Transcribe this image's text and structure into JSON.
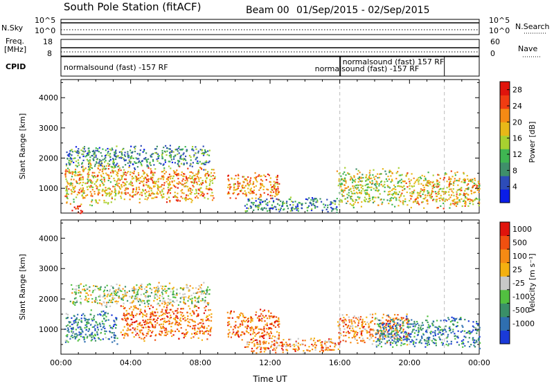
{
  "header": {
    "station": "South Pole Station (fitACF)",
    "beam": "Beam 00",
    "date_range": "01/Sep/2015 - 02/Sep/2015"
  },
  "top_panels": {
    "nsky_label": "N.Sky",
    "nsky_ticks": [
      "10^5",
      "10^0"
    ],
    "nsearch_label": "N.Search",
    "nsearch_ticks": [
      "10^5",
      "10^0"
    ],
    "freq_label_1": "Freq.",
    "freq_label_2": "[MHz]",
    "freq_ticks": [
      "18",
      "8"
    ],
    "nave_label": "Nave",
    "nave_ticks": [
      "60",
      "0"
    ],
    "cpid_label": "CPID",
    "cpid_segments": [
      {
        "start_hour": 0,
        "text": "normalsound (fast) -157 RF"
      },
      {
        "start_hour": 16,
        "text": "normalsound (fast) -157 RF"
      },
      {
        "start_hour": 16,
        "text": "normalsound (fast) 157 RF"
      },
      {
        "start_hour": 22,
        "text": ""
      }
    ]
  },
  "chart_data": [
    {
      "type": "heatmap",
      "name": "power",
      "xlabel": "",
      "ylabel": "Slant Range [km]",
      "ylim": [
        180,
        4600
      ],
      "xlim_hours": [
        0,
        24
      ],
      "yticks": [
        "1000",
        "2000",
        "3000",
        "4000"
      ],
      "colorbar_label": "Power [dB]",
      "colorbar_ticks": [
        "4",
        "8",
        "12",
        "16",
        "20",
        "24",
        "28"
      ],
      "colorbar_range": [
        0,
        30
      ],
      "colors": [
        "#0a1de8",
        "#2d4cb8",
        "#3f8f6a",
        "#3fb552",
        "#a8d030",
        "#e8b818",
        "#f58a14",
        "#f03c12",
        "#e0140c"
      ],
      "scatter_regions": [
        {
          "x_hours": [
            0.2,
            3.4
          ],
          "y_km": [
            550,
            1800
          ],
          "level": 0.62
        },
        {
          "x_hours": [
            3.4,
            8.8
          ],
          "y_km": [
            600,
            1700
          ],
          "level": 0.68
        },
        {
          "x_hours": [
            9.5,
            12.5
          ],
          "y_km": [
            700,
            1500
          ],
          "level": 0.72
        },
        {
          "x_hours": [
            10.5,
            15.8
          ],
          "y_km": [
            250,
            700
          ],
          "level": 0.28
        },
        {
          "x_hours": [
            15.8,
            19.5
          ],
          "y_km": [
            450,
            1600
          ],
          "level": 0.52
        },
        {
          "x_hours": [
            19.5,
            24
          ],
          "y_km": [
            400,
            1500
          ],
          "level": 0.62
        },
        {
          "x_hours": [
            0.2,
            8.5
          ],
          "y_km": [
            1700,
            2400
          ],
          "level": 0.3
        },
        {
          "x_hours": [
            0.5,
            1.2
          ],
          "y_km": [
            200,
            450
          ],
          "level": 0.85
        }
      ]
    },
    {
      "type": "heatmap",
      "name": "velocity",
      "xlabel": "Time UT",
      "ylabel": "Slant Range [km]",
      "ylim": [
        180,
        4600
      ],
      "xlim_hours": [
        0,
        24
      ],
      "yticks": [
        "1000",
        "2000",
        "3000",
        "4000"
      ],
      "xticks": [
        "00:00",
        "04:00",
        "08:00",
        "12:00",
        "16:00",
        "20:00",
        "00:00"
      ],
      "colorbar_label": "Velocity [m s⁻¹]",
      "colorbar_ticks": [
        "1000",
        "500",
        "100",
        "25",
        "-25",
        "-100",
        "-500",
        "-1000"
      ],
      "colors": [
        "#1a3ad8",
        "#2f6fb0",
        "#3a8f68",
        "#52c040",
        "#c8c8c8",
        "#f4b010",
        "#f58a14",
        "#f05010",
        "#e0140c"
      ],
      "scatter_regions": [
        {
          "x_hours": [
            0.2,
            3.2
          ],
          "y_km": [
            600,
            1600
          ],
          "level": 0.25
        },
        {
          "x_hours": [
            3.4,
            8.6
          ],
          "y_km": [
            700,
            1800
          ],
          "level": 0.78
        },
        {
          "x_hours": [
            9.5,
            12.5
          ],
          "y_km": [
            700,
            1600
          ],
          "level": 0.78
        },
        {
          "x_hours": [
            10.5,
            16
          ],
          "y_km": [
            250,
            700
          ],
          "level": 0.72
        },
        {
          "x_hours": [
            15.8,
            20
          ],
          "y_km": [
            600,
            1500
          ],
          "level": 0.72
        },
        {
          "x_hours": [
            18,
            24
          ],
          "y_km": [
            450,
            1400
          ],
          "level": 0.25
        },
        {
          "x_hours": [
            0.5,
            8.5
          ],
          "y_km": [
            1800,
            2500
          ],
          "level": 0.48
        }
      ]
    }
  ]
}
